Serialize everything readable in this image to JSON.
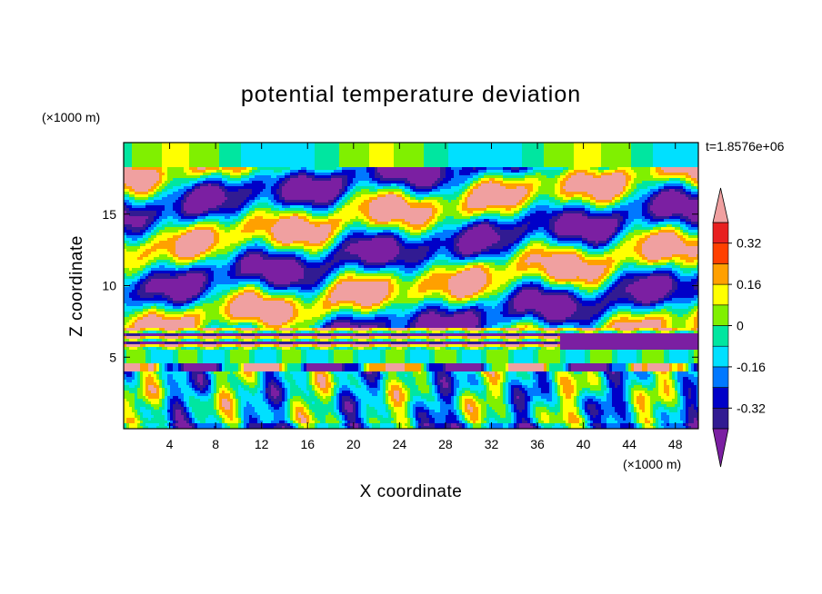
{
  "chart_data": {
    "type": "heatmap",
    "title": "potential temperature deviation",
    "xlabel": "X coordinate",
    "ylabel": "Z coordinate",
    "x_unit": "(×1000 m)",
    "y_unit": "(×1000 m)",
    "time_label": "t=1.8576e+06",
    "xlim": [
      0,
      50
    ],
    "ylim": [
      0,
      20
    ],
    "x_ticks": [
      4,
      8,
      12,
      16,
      20,
      24,
      28,
      32,
      36,
      40,
      44,
      48
    ],
    "y_ticks": [
      5,
      10,
      15
    ],
    "colorbar": {
      "levels": [
        -0.4,
        -0.32,
        -0.24,
        -0.16,
        -0.08,
        0,
        0.08,
        0.16,
        0.24,
        0.32,
        0.4
      ],
      "labels": [
        "0.32",
        "0.16",
        "0",
        "-0.16",
        "-0.32"
      ],
      "label_values": [
        0.32,
        0.16,
        0,
        -0.16,
        -0.32
      ],
      "colors": [
        "#7b1fa2",
        "#311b92",
        "#0000c8",
        "#0078ff",
        "#00e0ff",
        "#00e6a0",
        "#80f000",
        "#ffff00",
        "#ffa000",
        "#ff4000",
        "#f0a0a0"
      ]
    }
  }
}
